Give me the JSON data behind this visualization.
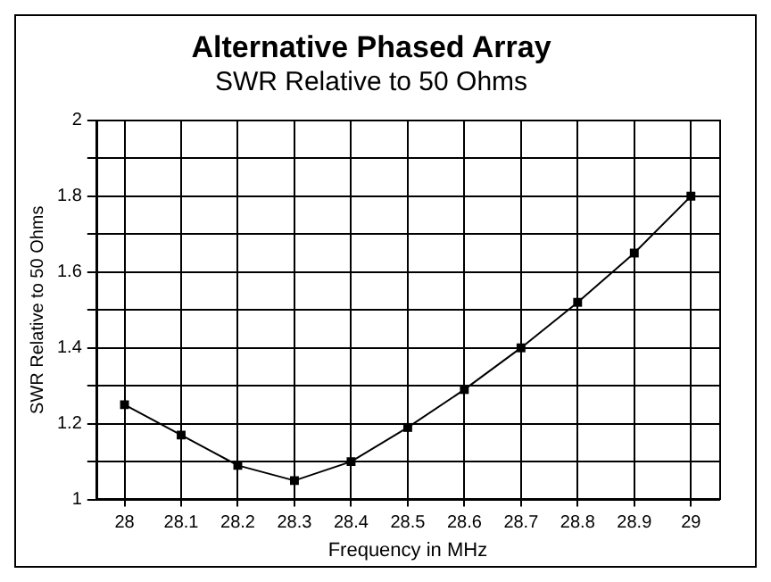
{
  "chart_data": {
    "type": "line",
    "title": "Alternative Phased Array",
    "subtitle": "SWR Relative to 50 Ohms",
    "xlabel": "Frequency in MHz",
    "ylabel": "SWR Relative to 50 Ohms",
    "categories": [
      "28",
      "28.1",
      "28.2",
      "28.3",
      "28.4",
      "28.5",
      "28.6",
      "28.7",
      "28.8",
      "28.9",
      "29"
    ],
    "series": [
      {
        "color": "#000000",
        "values": [
          1.25,
          1.17,
          1.09,
          1.05,
          1.1,
          1.19,
          1.29,
          1.4,
          1.52,
          1.65,
          1.8
        ]
      }
    ],
    "ylim": [
      1,
      2
    ],
    "yticks": [
      1,
      {
        "value": 1.1,
        "label": null
      },
      1.2,
      {
        "value": 1.3,
        "label": null
      },
      1.4,
      {
        "value": 1.5,
        "label": null
      },
      1.6,
      {
        "value": 1.7,
        "label": null
      },
      1.8,
      {
        "value": 1.9,
        "label": null
      },
      2
    ],
    "grid": true,
    "legend": false,
    "marker": "square",
    "line_style": "solid"
  }
}
